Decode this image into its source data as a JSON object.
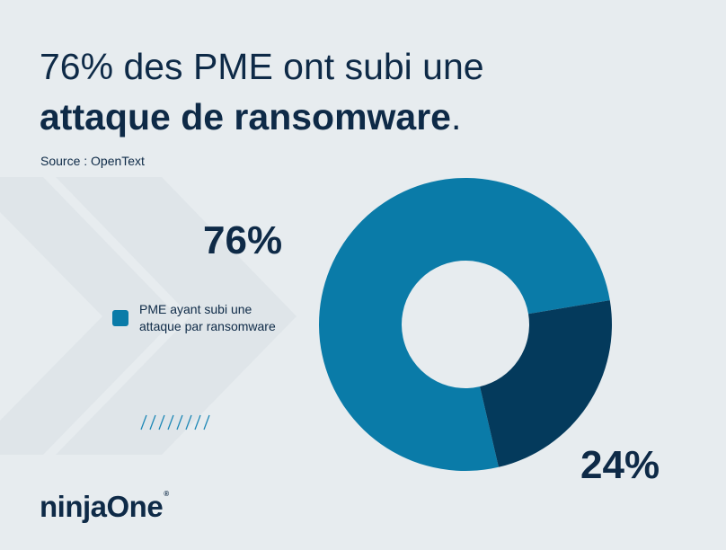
{
  "title": {
    "line1": "76% des PME ont subi une",
    "line2_bold": "attaque de ransomware",
    "line2_end": "."
  },
  "source": "Source : OpenText",
  "chart_data": {
    "type": "pie",
    "donut": true,
    "slices": [
      {
        "label": "PME ayant subi une attaque par ransomware",
        "value": 76,
        "display": "76%",
        "color": "#0a7ba8"
      },
      {
        "label": "",
        "value": 24,
        "display": "24%",
        "color": "#043a5c"
      }
    ],
    "legend": [
      {
        "label": "PME ayant subi une attaque par ransomware",
        "color": "#0a7ba8"
      }
    ],
    "legend_position": "left"
  },
  "legend_text": {
    "line1": "PME ayant subi une",
    "line2": "attaque par ransomware"
  },
  "logo": {
    "text": "ninjaOne",
    "registered": "®"
  },
  "colors": {
    "background": "#e7ecef",
    "text": "#0e2a47",
    "primary": "#0a7ba8",
    "dark": "#043a5c"
  }
}
